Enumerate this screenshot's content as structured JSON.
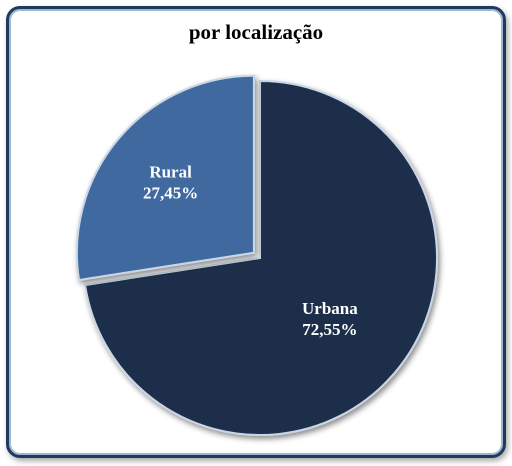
{
  "chart_data": {
    "type": "pie",
    "title": "por localização",
    "slices": [
      {
        "label": "Urbana",
        "value": 72.55,
        "value_label": "72,55%",
        "color": "#1e2e48",
        "exploded": false
      },
      {
        "label": "Rural",
        "value": 27.45,
        "value_label": "27,45%",
        "color": "#3f6b9f",
        "exploded": true
      }
    ],
    "start_angle_deg": 0,
    "direction": "clockwise",
    "legend": "none"
  }
}
